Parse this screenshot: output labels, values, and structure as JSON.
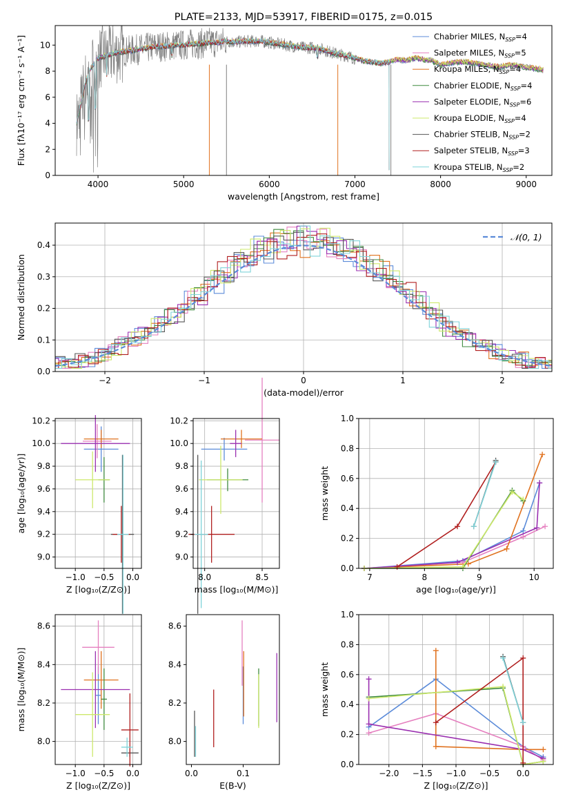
{
  "colors": {
    "chabrier_miles": "#5b8bd9",
    "salpeter_miles": "#e57fbf",
    "kroupa_miles": "#e0721f",
    "chabrier_elodie": "#3f8a3f",
    "salpeter_elodie": "#9a2fb0",
    "kroupa_elodie": "#cde86a",
    "chabrier_stelib": "#555555",
    "salpeter_stelib": "#b01e1e",
    "kroupa_stelib": "#7fd3d9"
  },
  "chart_data": [
    {
      "id": "spectrum",
      "type": "line",
      "title": "PLATE=2133, MJD=53917, FIBERID=0175, z=0.015",
      "xlabel": "wavelength [Angstrom, rest frame]",
      "ylabel": "Flux [fλ10⁻¹⁷ erg cm⁻² s⁻¹ A⁻¹]",
      "xlim": [
        3500,
        9300
      ],
      "ylim": [
        0,
        11.5
      ],
      "xticks": [
        4000,
        5000,
        6000,
        7000,
        8000,
        9000
      ],
      "yticks": [
        0,
        2,
        4,
        6,
        8,
        10
      ],
      "grid": false,
      "legend_position": "top-right",
      "legend": [
        {
          "label": "Chabrier MILES, N",
          "sub": "SSP",
          "suffix": "=4",
          "color": "#5b8bd9"
        },
        {
          "label": "Salpeter MILES, N",
          "sub": "SSP",
          "suffix": "=5",
          "color": "#e57fbf"
        },
        {
          "label": "Kroupa MILES, N",
          "sub": "SSP",
          "suffix": "=4",
          "color": "#e0721f"
        },
        {
          "label": "Chabrier ELODIE, N",
          "sub": "SSP",
          "suffix": "=4",
          "color": "#3f8a3f"
        },
        {
          "label": "Salpeter ELODIE, N",
          "sub": "SSP",
          "suffix": "=6",
          "color": "#9a2fb0"
        },
        {
          "label": "Kroupa ELODIE, N",
          "sub": "SSP",
          "suffix": "=4",
          "color": "#cde86a"
        },
        {
          "label": "Chabrier STELIB, N",
          "sub": "SSP",
          "suffix": "=2",
          "color": "#555555"
        },
        {
          "label": "Salpeter STELIB, N",
          "sub": "SSP",
          "suffix": "=3",
          "color": "#b01e1e"
        },
        {
          "label": "Kroupa STELIB, N",
          "sub": "SSP",
          "suffix": "=2",
          "color": "#7fd3d9"
        }
      ],
      "data_curve": {
        "name": "data",
        "x": [
          3750,
          3800,
          3850,
          3900,
          3950,
          4000,
          4100,
          4200,
          4300,
          4400,
          4500,
          4600,
          4700,
          4800,
          4900,
          5000,
          5100,
          5200,
          5300,
          5400,
          5500,
          5600,
          5700,
          5800,
          5900,
          6000,
          6100,
          6200,
          6300,
          6400,
          6500,
          6600,
          6700,
          6800,
          6900,
          7000,
          7100,
          7200,
          7300,
          7400,
          7500,
          7600,
          7700,
          7800,
          7900,
          8000,
          8100,
          8200,
          8300,
          8400,
          8500,
          8600,
          8700,
          8800,
          8900,
          9000,
          9100,
          9200
        ],
        "y": [
          4,
          5.5,
          7,
          8,
          8.6,
          9,
          9.2,
          9.4,
          9.5,
          9.6,
          9.7,
          9.8,
          9.9,
          9.9,
          10,
          10,
          10.1,
          10.1,
          10.2,
          10.2,
          10.3,
          10.2,
          10.3,
          10.3,
          10.3,
          10.2,
          10.1,
          10,
          9.9,
          9.8,
          9.8,
          9.7,
          9.5,
          9.3,
          9.2,
          9,
          8.8,
          8.7,
          8.6,
          8.7,
          8.9,
          8.8,
          9,
          8.9,
          8.8,
          8.5,
          8.6,
          8.7,
          8.7,
          8.6,
          8.5,
          8.4,
          8.3,
          8.5,
          8.4,
          8.3,
          8.2,
          8.1
        ]
      },
      "stelib_cutoff": 7400
    },
    {
      "id": "residuals",
      "type": "histogram",
      "xlabel": "(data-model)/error",
      "ylabel": "Normed distribution",
      "xlim": [
        -2.5,
        2.5
      ],
      "ylim": [
        0,
        0.47
      ],
      "xticks": [
        -2,
        -1,
        0,
        1,
        2
      ],
      "yticks": [
        0.0,
        0.1,
        0.2,
        0.3,
        0.4
      ],
      "grid": true,
      "legend_position": "top-right",
      "reference_label": "𝒩(0, 1)",
      "reference_color": "#5b8bd9",
      "bin_width": 0.1
    },
    {
      "id": "age_vs_Z",
      "type": "errorbar",
      "xlabel": "Z [log₁₀(Z/Z⊙)]",
      "ylabel": "age  [log₁₀(age/yr)]",
      "xlim": [
        -1.35,
        0.15
      ],
      "ylim": [
        8.9,
        10.22
      ],
      "xticks": [
        -1.0,
        -0.5,
        0.0
      ],
      "yticks": [
        9.0,
        9.2,
        9.4,
        9.6,
        9.8,
        10.0,
        10.2
      ],
      "grid": true,
      "points": [
        {
          "x": -0.55,
          "xerr": 0.3,
          "y": 9.95,
          "yerr": 0.2,
          "color": "#5b8bd9"
        },
        {
          "x": -0.62,
          "xerr": 0.25,
          "y": 10.02,
          "yerr": 0.15,
          "color": "#e57fbf"
        },
        {
          "x": -0.55,
          "xerr": 0.3,
          "y": 10.04,
          "yerr": 0.08,
          "color": "#e0721f"
        },
        {
          "x": -0.5,
          "xerr": 0.1,
          "y": 9.68,
          "yerr": 0.2,
          "color": "#3f8a3f"
        },
        {
          "x": -0.65,
          "xerr": 0.6,
          "y": 10.0,
          "yerr": 0.25,
          "color": "#9a2fb0"
        },
        {
          "x": -0.7,
          "xerr": 0.3,
          "y": 9.68,
          "yerr": 0.25,
          "color": "#cde86a"
        },
        {
          "x": -0.18,
          "xerr": 0.2,
          "y": 9.2,
          "yerr": 0.7,
          "color": "#555555"
        },
        {
          "x": -0.2,
          "xerr": 0.15,
          "y": 9.2,
          "yerr": 0.25,
          "color": "#b01e1e"
        },
        {
          "x": -0.17,
          "xerr": 0.1,
          "y": 9.2,
          "yerr": 0.7,
          "color": "#7fd3d9"
        }
      ]
    },
    {
      "id": "age_vs_mass",
      "type": "errorbar",
      "xlabel": "mass [log₁₀(M/M⊙)]",
      "ylabel": "",
      "xlim": [
        7.9,
        8.65
      ],
      "ylim": [
        8.9,
        10.22
      ],
      "xticks": [
        8.0,
        8.5
      ],
      "yticks": [
        9.0,
        9.2,
        9.4,
        9.6,
        9.8,
        10.0,
        10.2
      ],
      "grid": true,
      "points": [
        {
          "x": 8.17,
          "xerr": 0.2,
          "y": 9.95,
          "yerr": 0.1,
          "color": "#5b8bd9"
        },
        {
          "x": 8.5,
          "xerr": 0.15,
          "y": 10.03,
          "yerr": 0.55,
          "color": "#e57fbf"
        },
        {
          "x": 8.32,
          "xerr": 0.18,
          "y": 10.04,
          "yerr": 0.08,
          "color": "#e0721f"
        },
        {
          "x": 8.2,
          "xerr": 0.18,
          "y": 9.68,
          "yerr": 0.1,
          "color": "#3f8a3f"
        },
        {
          "x": 8.27,
          "xerr": 0.05,
          "y": 10.0,
          "yerr": 0.12,
          "color": "#9a2fb0"
        },
        {
          "x": 8.14,
          "xerr": 0.19,
          "y": 9.68,
          "yerr": 0.3,
          "color": "#cde86a"
        },
        {
          "x": 7.94,
          "xerr": 0.06,
          "y": 9.2,
          "yerr": 0.7,
          "color": "#555555"
        },
        {
          "x": 8.06,
          "xerr": 0.2,
          "y": 9.2,
          "yerr": 0.25,
          "color": "#b01e1e"
        },
        {
          "x": 7.97,
          "xerr": 0.06,
          "y": 9.2,
          "yerr": 0.65,
          "color": "#7fd3d9"
        }
      ]
    },
    {
      "id": "weight_vs_age",
      "type": "line",
      "xlabel": "age  [log₁₀(age/yr)]",
      "ylabel": "mass weight",
      "xlim": [
        6.8,
        10.35
      ],
      "ylim": [
        0,
        1.0
      ],
      "xticks": [
        7,
        8,
        9,
        10
      ],
      "yticks": [
        0.0,
        0.2,
        0.4,
        0.6,
        0.8,
        1.0
      ],
      "grid": true,
      "series": [
        {
          "color": "#5b8bd9",
          "x": [
            6.9,
            8.7,
            9.8,
            10.1
          ],
          "y": [
            0.0,
            0.05,
            0.25,
            0.57
          ]
        },
        {
          "color": "#e57fbf",
          "x": [
            6.9,
            8.7,
            9.8,
            10.2
          ],
          "y": [
            0.0,
            0.04,
            0.21,
            0.28
          ]
        },
        {
          "color": "#e0721f",
          "x": [
            6.9,
            8.8,
            9.5,
            10.15
          ],
          "y": [
            0.0,
            0.03,
            0.13,
            0.76
          ]
        },
        {
          "color": "#3f8a3f",
          "x": [
            6.9,
            8.7,
            9.6,
            9.8
          ],
          "y": [
            0.0,
            0.0,
            0.52,
            0.45
          ]
        },
        {
          "color": "#9a2fb0",
          "x": [
            6.9,
            8.6,
            10.05,
            10.1
          ],
          "y": [
            0.0,
            0.04,
            0.27,
            0.57
          ]
        },
        {
          "color": "#cde86a",
          "x": [
            6.9,
            8.7,
            9.6,
            9.8
          ],
          "y": [
            0.0,
            0.01,
            0.51,
            0.46
          ]
        },
        {
          "color": "#555555",
          "x": [
            8.9,
            9.3
          ],
          "y": [
            0.28,
            0.72
          ]
        },
        {
          "color": "#b01e1e",
          "x": [
            7.5,
            8.6,
            9.3
          ],
          "y": [
            0.01,
            0.28,
            0.71
          ]
        },
        {
          "color": "#7fd3d9",
          "x": [
            8.9,
            9.3
          ],
          "y": [
            0.28,
            0.71
          ]
        }
      ]
    },
    {
      "id": "mass_vs_Z",
      "type": "errorbar",
      "xlabel": "Z [log₁₀(Z/Z⊙)]",
      "ylabel": "mass [log₁₀(M/M⊙)]",
      "xlim": [
        -1.35,
        0.15
      ],
      "ylim": [
        7.88,
        8.66
      ],
      "xticks": [
        -1.0,
        -0.5,
        0.0
      ],
      "yticks": [
        8.0,
        8.2,
        8.4,
        8.6
      ],
      "grid": true,
      "points": [
        {
          "x": -0.6,
          "xerr": 0.05,
          "y": 8.24,
          "yerr": 0.15,
          "color": "#5b8bd9"
        },
        {
          "x": -0.6,
          "xerr": 0.28,
          "y": 8.49,
          "yerr": 0.14,
          "color": "#e57fbf"
        },
        {
          "x": -0.55,
          "xerr": 0.3,
          "y": 8.32,
          "yerr": 0.15,
          "color": "#e0721f"
        },
        {
          "x": -0.5,
          "xerr": 0.05,
          "y": 8.22,
          "yerr": 0.16,
          "color": "#3f8a3f"
        },
        {
          "x": -0.65,
          "xerr": 0.6,
          "y": 8.27,
          "yerr": 0.2,
          "color": "#9a2fb0"
        },
        {
          "x": -0.7,
          "xerr": 0.3,
          "y": 8.14,
          "yerr": 0.22,
          "color": "#cde86a"
        },
        {
          "x": -0.05,
          "xerr": 0.15,
          "y": 7.94,
          "yerr": 0.02,
          "color": "#555555"
        },
        {
          "x": -0.05,
          "xerr": 0.15,
          "y": 8.06,
          "yerr": 0.19,
          "color": "#b01e1e"
        },
        {
          "x": -0.1,
          "xerr": 0.1,
          "y": 7.97,
          "yerr": 0.05,
          "color": "#7fd3d9"
        }
      ]
    },
    {
      "id": "mass_vs_ebv",
      "type": "errorbar",
      "xlabel": "E(B-V)",
      "ylabel": "",
      "xlim": [
        -0.01,
        0.17
      ],
      "ylim": [
        7.88,
        8.66
      ],
      "xticks": [
        0.0,
        0.1
      ],
      "yticks": [
        8.0,
        8.2,
        8.4,
        8.6
      ],
      "grid": false,
      "points": [
        {
          "x": 0.1,
          "xerr": 0,
          "y": 8.24,
          "yerr": 0.15,
          "color": "#5b8bd9"
        },
        {
          "x": 0.098,
          "xerr": 0,
          "y": 8.46,
          "yerr": 0.17,
          "color": "#e57fbf"
        },
        {
          "x": 0.101,
          "xerr": 0,
          "y": 8.3,
          "yerr": 0.17,
          "color": "#e0721f"
        },
        {
          "x": 0.13,
          "xerr": 0,
          "y": 8.23,
          "yerr": 0.15,
          "color": "#3f8a3f"
        },
        {
          "x": 0.165,
          "xerr": 0,
          "y": 8.28,
          "yerr": 0.18,
          "color": "#9a2fb0"
        },
        {
          "x": 0.13,
          "xerr": 0,
          "y": 8.21,
          "yerr": 0.14,
          "color": "#cde86a"
        },
        {
          "x": 0.006,
          "xerr": 0,
          "y": 8.04,
          "yerr": 0.12,
          "color": "#555555"
        },
        {
          "x": 0.043,
          "xerr": 0,
          "y": 8.12,
          "yerr": 0.15,
          "color": "#b01e1e"
        },
        {
          "x": 0.008,
          "xerr": 0,
          "y": 8.0,
          "yerr": 0.08,
          "color": "#7fd3d9"
        }
      ]
    },
    {
      "id": "weight_vs_Z",
      "type": "line",
      "xlabel": "Z [log₁₀(Z/Z⊙)]",
      "ylabel": "mass weight",
      "xlim": [
        -2.45,
        0.45
      ],
      "ylim": [
        0,
        1.0
      ],
      "xticks": [
        -2.0,
        -1.5,
        -1.0,
        -0.5,
        0.0
      ],
      "yticks": [
        0.0,
        0.2,
        0.4,
        0.6,
        0.8,
        1.0
      ],
      "grid": true,
      "series": [
        {
          "color": "#5b8bd9",
          "x": [
            -2.3,
            -1.3,
            0.0,
            0.3
          ],
          "y": [
            0.25,
            0.57,
            0.12,
            0.05
          ]
        },
        {
          "color": "#e57fbf",
          "x": [
            -2.3,
            -1.3,
            0.0,
            0.3
          ],
          "y": [
            0.21,
            0.34,
            0.12,
            0.03
          ]
        },
        {
          "color": "#e0721f",
          "x": [
            -1.3,
            -1.3,
            0.0,
            0.3
          ],
          "y": [
            0.76,
            0.12,
            0.1,
            0.1
          ]
        },
        {
          "color": "#3f8a3f",
          "x": [
            -2.3,
            -0.3,
            0.0,
            0.3
          ],
          "y": [
            0.45,
            0.51,
            0.0,
            0.02
          ]
        },
        {
          "color": "#9a2fb0",
          "x": [
            -2.3,
            -2.3,
            0.0,
            0.3
          ],
          "y": [
            0.57,
            0.27,
            0.1,
            0.04
          ]
        },
        {
          "color": "#cde86a",
          "x": [
            -2.3,
            -0.3,
            0.0,
            0.3
          ],
          "y": [
            0.44,
            0.52,
            0.0,
            0.02
          ]
        },
        {
          "color": "#555555",
          "x": [
            -0.3,
            0.0
          ],
          "y": [
            0.72,
            0.28
          ]
        },
        {
          "color": "#b01e1e",
          "x": [
            -1.3,
            0.0,
            0.0
          ],
          "y": [
            0.28,
            0.71,
            0.01
          ]
        },
        {
          "color": "#7fd3d9",
          "x": [
            -0.3,
            0.0
          ],
          "y": [
            0.71,
            0.28
          ]
        }
      ]
    }
  ]
}
